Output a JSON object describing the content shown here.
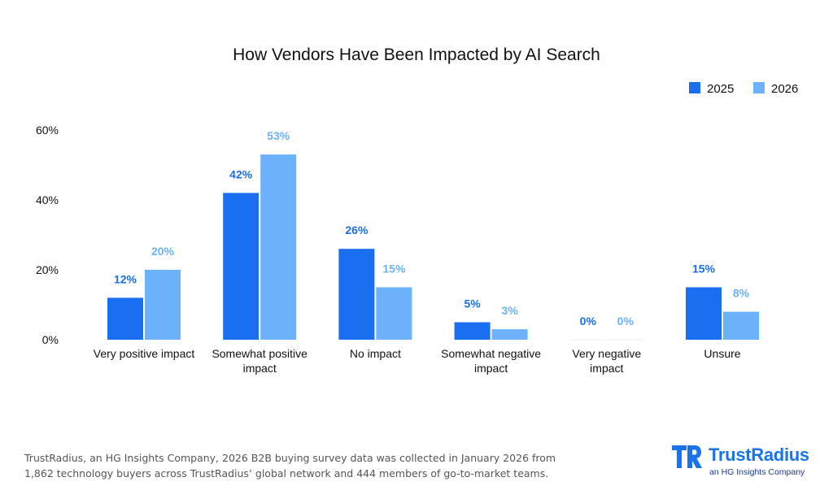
{
  "chart_data": {
    "type": "bar",
    "title": "How Vendors Have Been Impacted by AI Search",
    "categories": [
      [
        "Very positive impact"
      ],
      [
        "Somewhat positive",
        "impact"
      ],
      [
        "No impact"
      ],
      [
        "Somewhat negative",
        "impact"
      ],
      [
        "Very negative",
        "impact"
      ],
      [
        "Unsure"
      ]
    ],
    "series": [
      {
        "name": "2025",
        "color": "#1a6ef0",
        "values": [
          12,
          42,
          26,
          5,
          0,
          15
        ],
        "labels": [
          "12%",
          "42%",
          "26%",
          "5%",
          "0%",
          "15%"
        ]
      },
      {
        "name": "2026",
        "color": "#6bb2fb",
        "values": [
          20,
          53,
          15,
          3,
          0,
          8
        ],
        "labels": [
          "20%",
          "53%",
          "15%",
          "3%",
          "0%",
          "8%"
        ]
      }
    ],
    "ylim": [
      0,
      60
    ],
    "yticks": [
      0,
      20,
      40,
      60
    ],
    "ytick_labels": [
      "0%",
      "20%",
      "40%",
      "60%"
    ],
    "legend_position": "top-right",
    "grid": false
  },
  "footnote": {
    "line1": "TrustRadius, an HG Insights Company, 2026 B2B buying survey data was collected in January 2026 from",
    "line2": "1,862 technology buyers across TrustRadius’ global network and 444 members of go-to-market teams."
  },
  "brand": {
    "name": "TrustRadius",
    "tagline": "an HG Insights Company",
    "mark": "TR",
    "color": "#1a73e8"
  }
}
